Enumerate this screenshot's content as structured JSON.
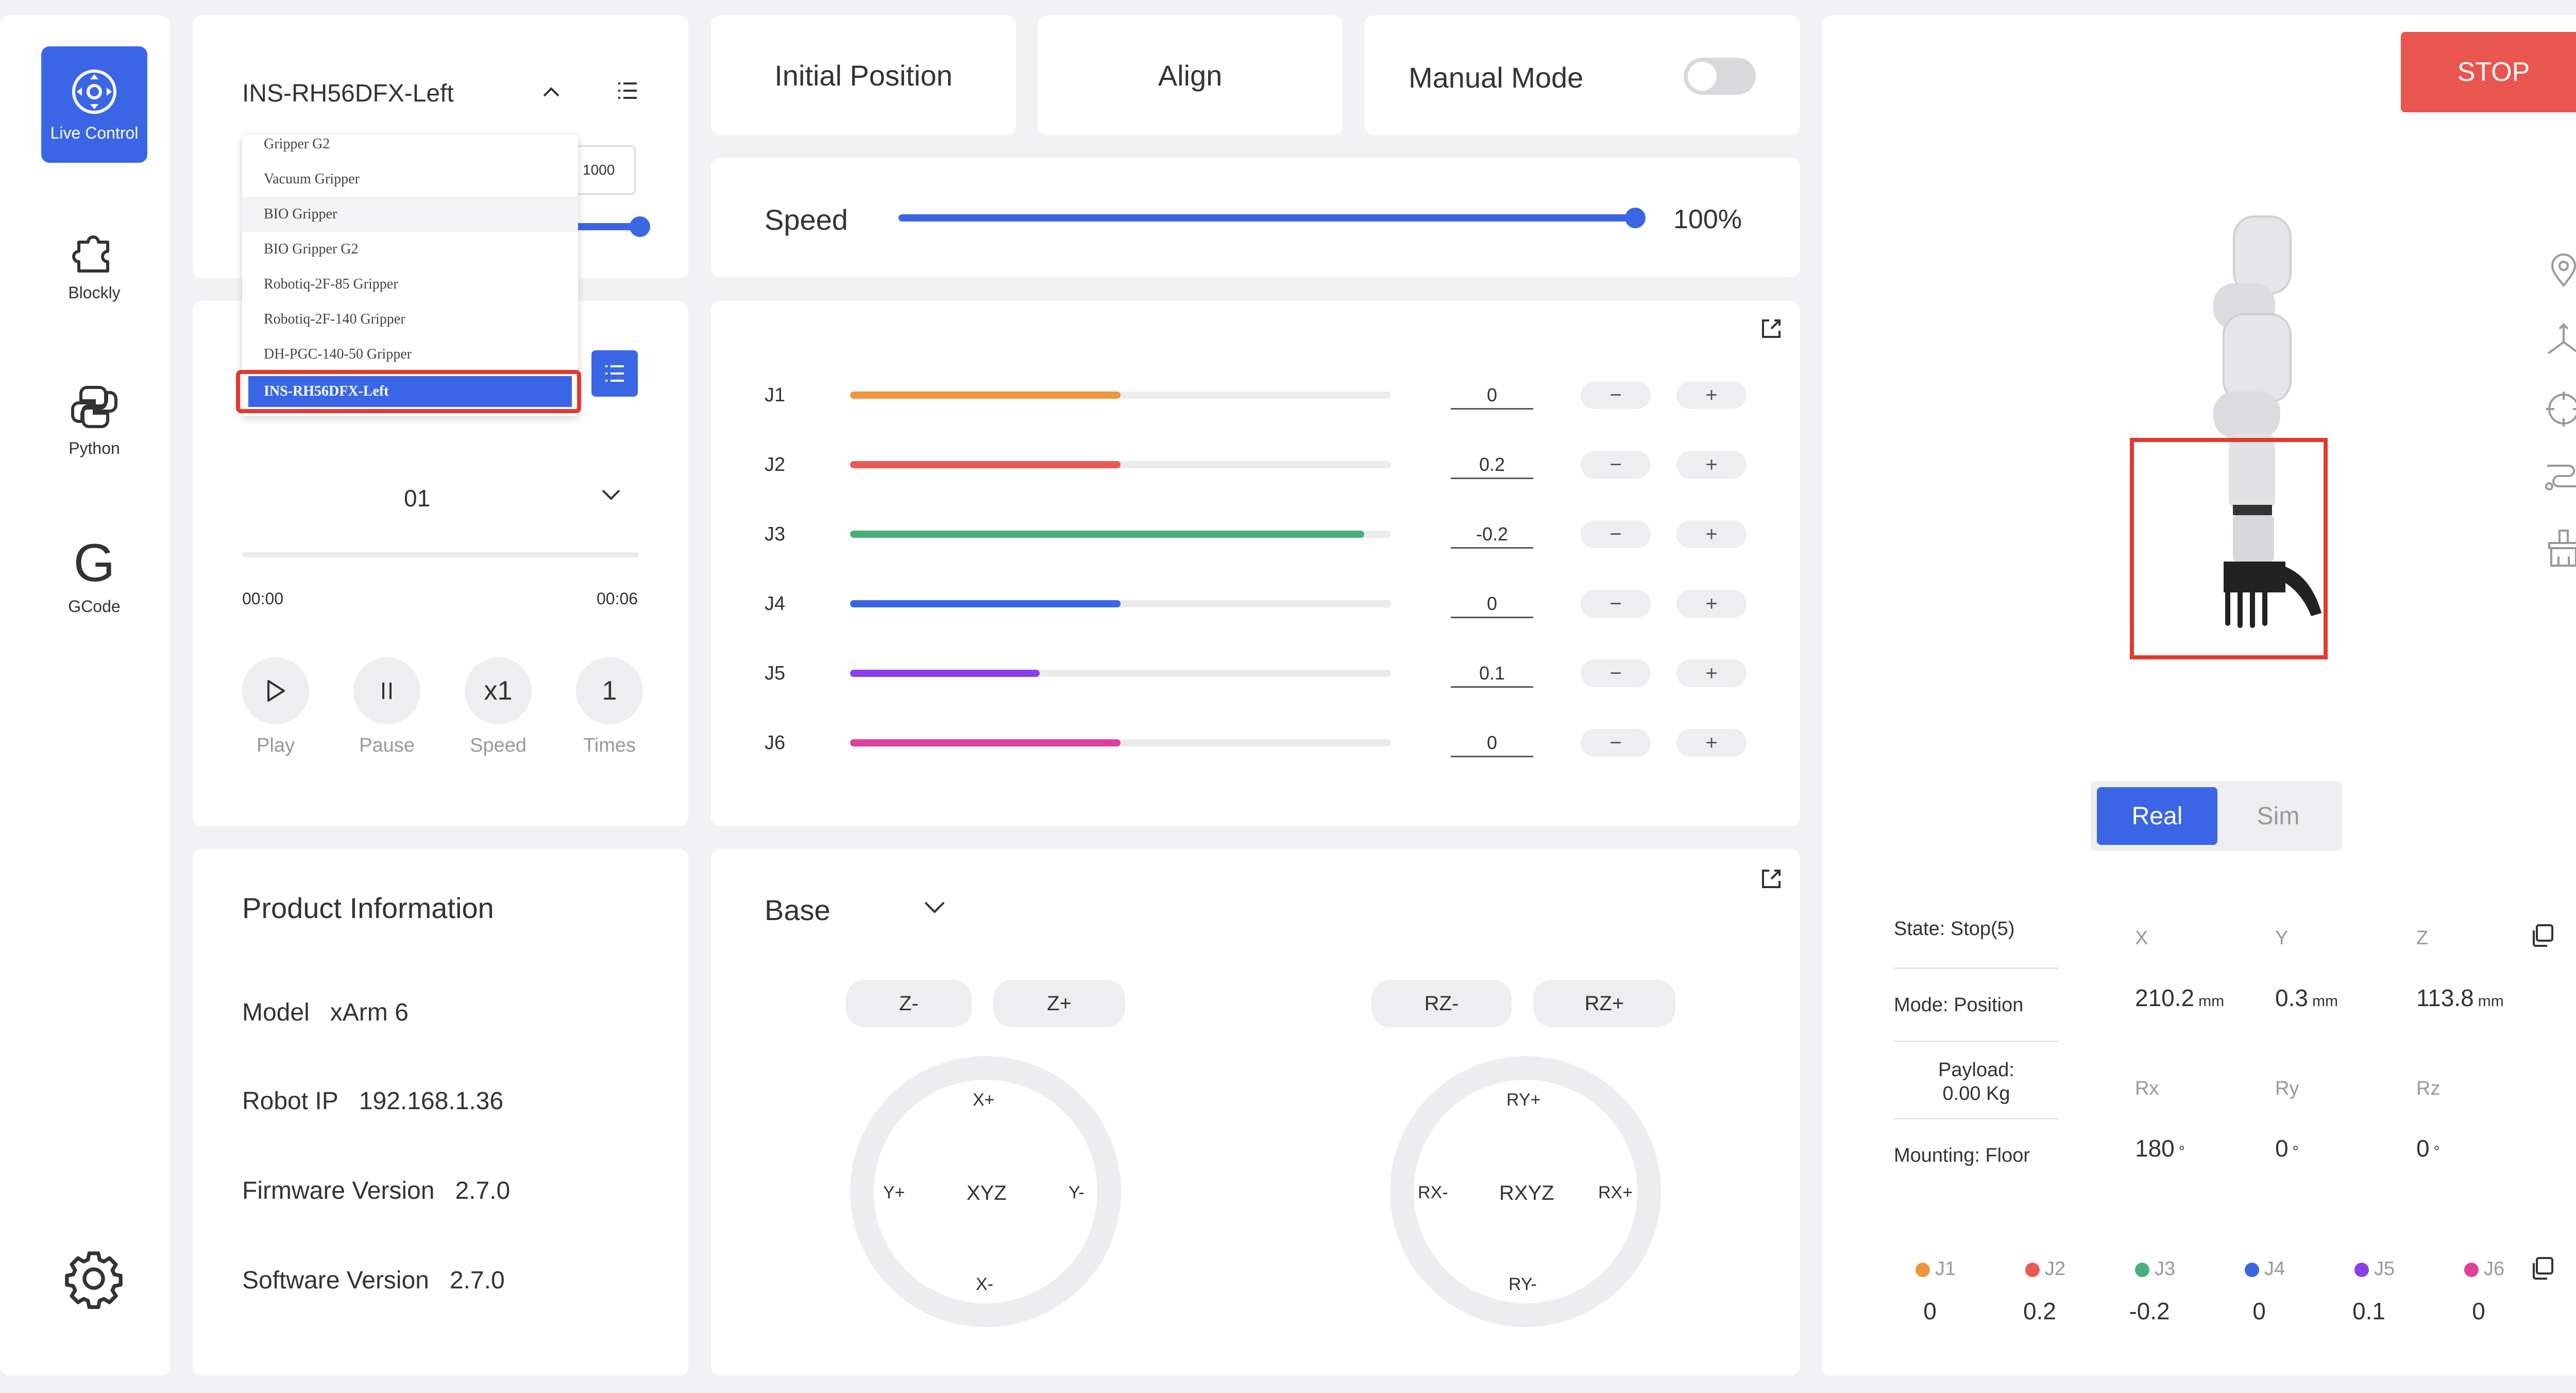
{
  "nav": {
    "items": [
      {
        "label": "Live Control",
        "icon": "live-control-icon"
      },
      {
        "label": "Blockly",
        "icon": "puzzle-icon"
      },
      {
        "label": "Python",
        "icon": "python-icon"
      },
      {
        "label": "GCode",
        "icon": "gcode-icon"
      }
    ],
    "settings_icon": "gear-icon"
  },
  "gripper": {
    "selected": "INS-RH56DFX-Left",
    "speed_value": "1000",
    "options": [
      "Gripper G2",
      "Vacuum Gripper",
      "BIO Gripper",
      "BIO Gripper G2",
      "Robotiq-2F-85 Gripper",
      "Robotiq-2F-140 Gripper",
      "DH-PGC-140-50 Gripper",
      "INS-RH56DFX-Left"
    ]
  },
  "trajectory": {
    "selected": "01",
    "time_start": "00:00",
    "time_end": "00:06",
    "controls": [
      {
        "symbol": "▷",
        "label": "Play"
      },
      {
        "symbol": "II",
        "label": "Pause"
      },
      {
        "symbol": "x1",
        "label": "Speed"
      },
      {
        "symbol": "1",
        "label": "Times"
      }
    ]
  },
  "product": {
    "title": "Product Information",
    "rows": [
      {
        "label": "Model",
        "value": "xArm 6"
      },
      {
        "label": "Robot IP",
        "value": "192.168.1.36"
      },
      {
        "label": "Firmware Version",
        "value": "2.7.0"
      },
      {
        "label": "Software Version",
        "value": "2.7.0"
      }
    ]
  },
  "top_buttons": {
    "initial_position": "Initial Position",
    "align": "Align",
    "manual_mode": "Manual Mode",
    "manual_mode_on": false
  },
  "speed": {
    "label": "Speed",
    "value": "100%",
    "fraction": 1.0
  },
  "joints": [
    {
      "name": "J1",
      "value": "0",
      "fill": 0.5,
      "color": "#f0953a"
    },
    {
      "name": "J2",
      "value": "0.2",
      "fill": 0.5,
      "color": "#ea5a55"
    },
    {
      "name": "J3",
      "value": "-0.2",
      "fill": 0.95,
      "color": "#47b07a"
    },
    {
      "name": "J4",
      "value": "0",
      "fill": 0.5,
      "color": "#3a66e6"
    },
    {
      "name": "J5",
      "value": "0.1",
      "fill": 0.35,
      "color": "#8a3fe8"
    },
    {
      "name": "J6",
      "value": "0",
      "fill": 0.5,
      "color": "#e0409a"
    }
  ],
  "jog": {
    "frame": "Base",
    "z_minus": "Z-",
    "z_plus": "Z+",
    "rz_minus": "RZ-",
    "rz_plus": "RZ+",
    "xyz": {
      "center": "XYZ",
      "top": "X+",
      "bottom": "X-",
      "left": "Y+",
      "right": "Y-"
    },
    "rxyz": {
      "center": "RXYZ",
      "top": "RY+",
      "bottom": "RY-",
      "left": "RX-",
      "right": "RX+"
    }
  },
  "stop_label": "STOP",
  "view_toggle": {
    "real": "Real",
    "sim": "Sim",
    "active": "Real"
  },
  "state": [
    {
      "label": "State:",
      "value": "Stop(5)"
    },
    {
      "label": "Mode:",
      "value": "Position"
    },
    {
      "label": "Payload:",
      "value": "0.00 Kg"
    },
    {
      "label": "Mounting:",
      "value": "Floor"
    }
  ],
  "pose": [
    {
      "label": "X",
      "value": "210.2",
      "unit": "mm"
    },
    {
      "label": "Y",
      "value": "0.3",
      "unit": "mm"
    },
    {
      "label": "Z",
      "value": "113.8",
      "unit": "mm"
    },
    {
      "label": "Rx",
      "value": "180",
      "unit": "°"
    },
    {
      "label": "Ry",
      "value": "0",
      "unit": "°"
    },
    {
      "label": "Rz",
      "value": "0",
      "unit": "°"
    }
  ],
  "joint_summary": [
    {
      "name": "J1",
      "value": "0",
      "color": "#f0953a"
    },
    {
      "name": "J2",
      "value": "0.2",
      "color": "#ea5a55"
    },
    {
      "name": "J3",
      "value": "-0.2",
      "color": "#47b07a"
    },
    {
      "name": "J4",
      "value": "0",
      "color": "#3a66e6"
    },
    {
      "name": "J5",
      "value": "0.1",
      "color": "#8a3fe8"
    },
    {
      "name": "J6",
      "value": "0",
      "color": "#e0409a"
    }
  ],
  "colors": {
    "accent": "#3a66e6",
    "stop": "#e8564f",
    "highlight": "#e23a2e"
  }
}
